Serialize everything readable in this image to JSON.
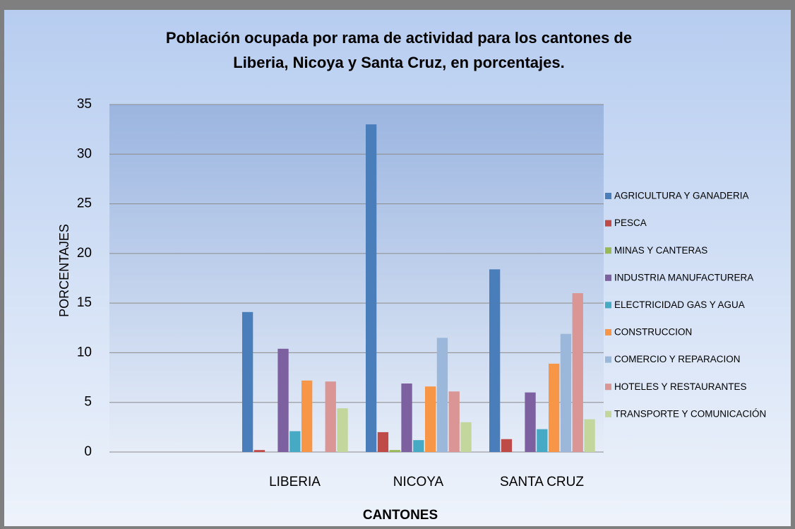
{
  "chart_data": {
    "type": "bar",
    "title": [
      "Población ocupada por rama de actividad para los cantones de",
      "Liberia, Nicoya y Santa Cruz, en porcentajes."
    ],
    "x_label": "CANTONES",
    "y_label": "PORCENTAJES",
    "categories": [
      null,
      "LIBERIA",
      "NICOYA",
      "SANTA CRUZ"
    ],
    "ylim": [
      0,
      35
    ],
    "yticks": [
      0,
      5,
      10,
      15,
      20,
      25,
      30,
      35
    ],
    "grid": true,
    "legend": "right",
    "series": [
      {
        "name": "AGRICULTURA Y GANADERIA",
        "color": "#4a7ebb",
        "values": [
          null,
          14.1,
          33.0,
          18.4
        ]
      },
      {
        "name": "PESCA",
        "color": "#be4b48",
        "values": [
          null,
          0.2,
          2.0,
          1.3
        ]
      },
      {
        "name": "MINAS Y CANTERAS",
        "color": "#98b954",
        "values": [
          null,
          0,
          0.2,
          0
        ]
      },
      {
        "name": "INDUSTRIA MANUFACTURERA",
        "color": "#7d60a0",
        "values": [
          null,
          10.4,
          6.9,
          6.0
        ]
      },
      {
        "name": "ELECTRICIDAD GAS  Y AGUA",
        "color": "#46aac5",
        "values": [
          null,
          2.1,
          1.2,
          2.3
        ]
      },
      {
        "name": "CONSTRUCCION",
        "color": "#f79646",
        "values": [
          null,
          7.2,
          6.6,
          8.9
        ]
      },
      {
        "name": "COMERCIO Y REPARACION",
        "color": "#9bb7d9",
        "values": [
          null,
          0,
          11.5,
          11.9
        ]
      },
      {
        "name": "HOTELES Y RESTAURANTES",
        "color": "#d99694",
        "values": [
          null,
          7.1,
          6.1,
          16.0
        ]
      },
      {
        "name": "TRANSPORTE Y COMUNICACIÓN",
        "color": "#c3d69b",
        "values": [
          null,
          4.4,
          3.0,
          3.3
        ]
      }
    ]
  }
}
